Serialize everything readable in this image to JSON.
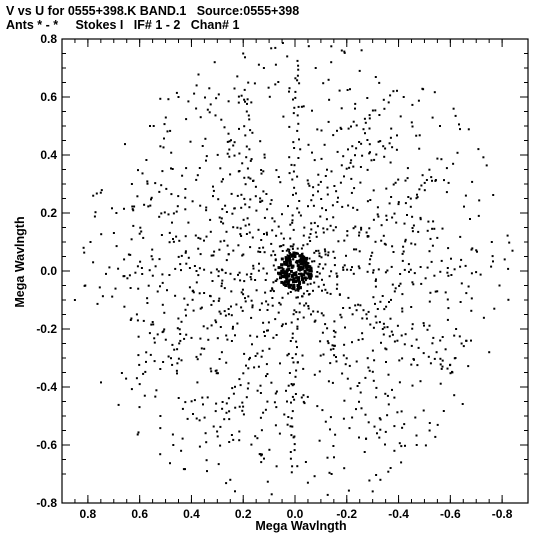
{
  "header": {
    "line1": "V vs U for 0555+398.K BAND.1   Source:0555+398",
    "line2": "Ants * - *     Stokes I   IF# 1 - 2   Chan# 1"
  },
  "chart_data": {
    "type": "scatter",
    "title": "V vs U for 0555+398.K BAND.1   Source:0555+398",
    "subtitle": "Ants * - *     Stokes I   IF# 1 - 2   Chan# 1",
    "xlabel": "Mega Wavlngth",
    "ylabel": "Mega Wavlngth",
    "xlim": [
      0.9,
      -0.9
    ],
    "ylim": [
      -0.8,
      0.8
    ],
    "x_ticks": [
      0.8,
      0.6,
      0.4,
      0.2,
      0.0,
      -0.2,
      -0.4,
      -0.6,
      -0.8
    ],
    "x_tick_labels": [
      "0.8",
      "0.6",
      "0.4",
      "0.2",
      "0.0",
      "-0.2",
      "-0.4",
      "-0.6",
      "-0.8"
    ],
    "y_ticks": [
      0.8,
      0.6,
      0.4,
      0.2,
      0.0,
      -0.2,
      -0.4,
      -0.6,
      -0.8
    ],
    "y_tick_labels": [
      "0.8",
      "0.6",
      "0.4",
      "0.2",
      "0.0",
      "-0.2",
      "-0.4",
      "-0.6",
      "-0.8"
    ],
    "grid": false,
    "marker_color": "#000000",
    "coverage": {
      "description_of_points": "uv-coverage: concentric elliptical arc tracks plus conjugate-symmetric radial spokes",
      "track_radii": [
        0.02,
        0.04,
        0.06,
        0.08,
        0.1,
        0.12,
        0.15,
        0.18,
        0.21,
        0.24,
        0.27,
        0.3,
        0.33,
        0.36,
        0.39,
        0.42,
        0.45,
        0.48,
        0.52,
        0.56,
        0.6,
        0.65,
        0.7,
        0.76,
        0.82
      ],
      "spoke_angles_deg": [
        90,
        30,
        150,
        60,
        120,
        0
      ],
      "max_radius": 0.85,
      "outer_points": [
        [
          0.79,
          0.1
        ],
        [
          0.81,
          -0.05
        ],
        [
          0.78,
          0.03
        ],
        [
          0.75,
          0.27
        ],
        [
          0.73,
          -0.01
        ],
        [
          0.69,
          0.2
        ],
        [
          0.66,
          0.04
        ],
        [
          0.63,
          0.3
        ],
        [
          0.31,
          0.72
        ],
        [
          0.38,
          0.64
        ],
        [
          0.34,
          -0.69
        ],
        [
          0.47,
          -0.6
        ],
        [
          -0.33,
          -0.72
        ],
        [
          -0.41,
          -0.66
        ],
        [
          -0.25,
          0.69
        ],
        [
          -0.38,
          0.62
        ],
        [
          -0.42,
          0.6
        ],
        [
          -0.56,
          0.5
        ],
        [
          -0.66,
          0.26
        ],
        [
          -0.71,
          0.19
        ],
        [
          -0.76,
          0.1
        ],
        [
          -0.81,
          0.04
        ],
        [
          -0.79,
          -0.05
        ],
        [
          -0.77,
          -0.13
        ],
        [
          -0.75,
          -0.28
        ],
        [
          -0.68,
          -0.24
        ],
        [
          -0.62,
          -0.3
        ],
        [
          -0.52,
          -0.55
        ],
        [
          -0.47,
          -0.6
        ],
        [
          -0.3,
          -0.76
        ],
        [
          0.09,
          -0.77
        ],
        [
          0.25,
          -0.72
        ],
        [
          0.52,
          -0.5
        ],
        [
          0.58,
          -0.43
        ],
        [
          0.6,
          -0.39
        ],
        [
          0.45,
          0.6
        ],
        [
          0.56,
          0.5
        ],
        [
          0.52,
          0.43
        ],
        [
          0.2,
          0.75
        ],
        [
          0.12,
          0.7
        ],
        [
          -0.14,
          0.72
        ],
        [
          -0.08,
          0.7
        ],
        [
          0.85,
          -0.1
        ],
        [
          -0.84,
          0.07
        ],
        [
          0.44,
          -0.62
        ],
        [
          -0.19,
          -0.68
        ],
        [
          -0.05,
          -0.73
        ],
        [
          0.03,
          0.74
        ]
      ]
    }
  }
}
